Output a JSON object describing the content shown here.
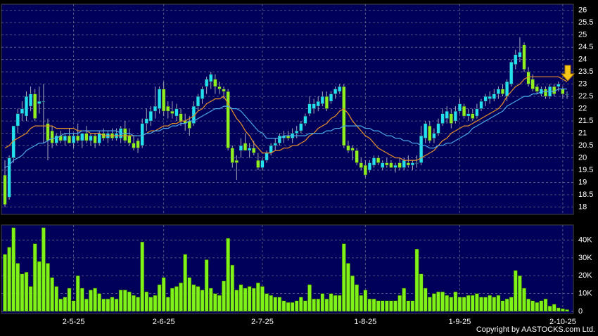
{
  "chart_data": {
    "type": "candlestick",
    "categories": [
      null,
      null,
      null,
      null,
      null,
      null,
      null,
      null,
      null,
      null,
      null,
      null,
      null,
      null,
      null,
      null,
      "2-5-25",
      null,
      null,
      null,
      null,
      null,
      null,
      null,
      null,
      null,
      null,
      null,
      null,
      null,
      null,
      null,
      null,
      null,
      null,
      null,
      null,
      "2-6-25",
      null,
      null,
      null,
      null,
      null,
      null,
      null,
      null,
      null,
      null,
      null,
      null,
      null,
      null,
      null,
      null,
      null,
      null,
      null,
      null,
      null,
      null,
      "2-7-25",
      null,
      null,
      null,
      null,
      null,
      null,
      null,
      null,
      null,
      null,
      null,
      null,
      null,
      null,
      null,
      null,
      null,
      null,
      null,
      null,
      null,
      null,
      null,
      "1-8-25",
      null,
      null,
      null,
      null,
      null,
      null,
      null,
      null,
      null,
      null,
      null,
      null,
      null,
      null,
      null,
      null,
      null,
      null,
      null,
      null,
      null,
      "1-9-25",
      null,
      null,
      null,
      null,
      null,
      null,
      null,
      null,
      null,
      null,
      null,
      null,
      null,
      null,
      null,
      null,
      null,
      null,
      null,
      null,
      null,
      null,
      null,
      "2-10-25",
      null
    ],
    "open": [
      19.3,
      18.4,
      20.0,
      21.3,
      21.8,
      21.7,
      22.1,
      22.6,
      22.2,
      22.3,
      21.4,
      21.1,
      20.6,
      20.9,
      20.7,
      20.9,
      20.6,
      20.9,
      20.7,
      21.0,
      20.7,
      20.9,
      20.6,
      21.0,
      20.8,
      21.0,
      20.8,
      20.8,
      21.2,
      20.9,
      20.6,
      20.7,
      20.5,
      21.4,
      21.5,
      21.9,
      22.0,
      22.8,
      22.1,
      21.9,
      21.7,
      21.8,
      21.5,
      21.5,
      21.4,
      22.1,
      22.4,
      22.9,
      23.1,
      23.2,
      22.9,
      22.8,
      22.7,
      20.4,
      19.9,
      20.3,
      20.6,
      20.3,
      20.4,
      19.9,
      19.6,
      19.9,
      20.2,
      20.5,
      20.6,
      20.8,
      20.9,
      20.8,
      21.0,
      21.1,
      21.4,
      21.8,
      22.0,
      22.1,
      22.2,
      22.5,
      22.3,
      22.6,
      22.7,
      22.9,
      20.5,
      20.4,
      20.3,
      19.8,
      19.7,
      19.5,
      19.7,
      20.0,
      19.6,
      19.8,
      19.8,
      19.6,
      19.8,
      19.6,
      19.8,
      19.7,
      19.8,
      19.8,
      20.8,
      21.3,
      20.8,
      21.0,
      21.4,
      21.6,
      21.8,
      21.5,
      21.9,
      22.1,
      21.7,
      21.8,
      21.7,
      22.0,
      22.3,
      22.4,
      22.4,
      22.6,
      22.8,
      22.5,
      23.0,
      23.8,
      24.1,
      24.6,
      23.5,
      23.2,
      22.9,
      22.6,
      22.8,
      22.5,
      22.9,
      22.9,
      22.8,
      22.6
    ],
    "high": [
      19.9,
      20.1,
      21.3,
      22.0,
      22.3,
      22.7,
      22.9,
      22.8,
      22.9,
      23.0,
      21.6,
      21.3,
      21.0,
      21.1,
      21.0,
      21.2,
      21.0,
      21.4,
      21.0,
      21.3,
      21.0,
      21.0,
      21.1,
      21.2,
      21.1,
      21.2,
      21.2,
      21.3,
      21.5,
      21.2,
      20.9,
      20.8,
      21.6,
      22.0,
      22.1,
      22.9,
      22.9,
      23.1,
      22.3,
      22.3,
      22.2,
      22.0,
      21.8,
      21.7,
      22.3,
      22.6,
      22.9,
      23.3,
      23.5,
      23.4,
      23.1,
      22.9,
      22.8,
      20.5,
      20.1,
      20.8,
      21.0,
      20.6,
      20.7,
      20.2,
      20.0,
      20.3,
      20.6,
      20.8,
      21.0,
      21.1,
      21.1,
      21.2,
      21.3,
      21.5,
      21.8,
      22.5,
      22.4,
      22.5,
      22.7,
      22.7,
      22.7,
      22.9,
      23.0,
      23.0,
      20.7,
      20.5,
      20.4,
      20.0,
      19.9,
      19.9,
      20.1,
      20.1,
      19.9,
      20.0,
      19.9,
      19.8,
      20.0,
      20.0,
      20.1,
      19.9,
      20.1,
      21.3,
      21.5,
      21.5,
      21.2,
      21.6,
      22.0,
      22.1,
      22.0,
      22.1,
      22.4,
      22.2,
      22.0,
      22.0,
      22.2,
      22.4,
      22.6,
      22.7,
      22.8,
      22.9,
      23.0,
      23.2,
      24.0,
      24.4,
      24.9,
      24.7,
      23.7,
      23.4,
      23.0,
      22.9,
      22.9,
      23.0,
      23.0,
      23.1,
      22.9,
      22.7
    ],
    "low": [
      18.0,
      18.3,
      19.8,
      21.0,
      21.5,
      21.5,
      21.9,
      21.5,
      21.8,
      20.6,
      19.9,
      20.4,
      20.5,
      20.6,
      20.5,
      20.6,
      20.4,
      20.6,
      20.4,
      20.6,
      20.5,
      20.4,
      20.5,
      20.7,
      20.6,
      20.7,
      20.7,
      20.6,
      20.6,
      20.5,
      20.3,
      20.2,
      20.4,
      21.1,
      21.3,
      21.6,
      21.8,
      21.7,
      21.6,
      21.6,
      21.5,
      21.3,
      21.1,
      20.9,
      21.3,
      21.9,
      22.2,
      22.6,
      22.8,
      22.6,
      22.6,
      22.4,
      20.3,
      19.6,
      19.1,
      20.0,
      20.3,
      20.0,
      20.1,
      19.5,
      19.5,
      19.8,
      20.1,
      20.3,
      20.5,
      20.6,
      20.7,
      20.6,
      20.8,
      21.0,
      21.3,
      21.7,
      21.8,
      21.9,
      22.1,
      21.9,
      22.2,
      22.4,
      22.6,
      20.4,
      20.2,
      19.9,
      19.7,
      19.5,
      19.2,
      19.4,
      19.6,
      19.7,
      19.5,
      19.6,
      19.6,
      19.4,
      19.5,
      19.5,
      19.6,
      19.5,
      19.6,
      19.7,
      20.6,
      20.6,
      20.6,
      20.9,
      21.3,
      21.4,
      21.2,
      21.4,
      21.8,
      21.6,
      21.5,
      21.5,
      21.6,
      21.9,
      22.1,
      22.2,
      22.3,
      22.4,
      22.5,
      22.3,
      22.9,
      23.6,
      23.9,
      23.5,
      22.9,
      22.7,
      22.6,
      22.5,
      22.4,
      22.4,
      22.5,
      22.7,
      22.4,
      22.4
    ],
    "close": [
      18.1,
      20.0,
      21.3,
      21.8,
      22.0,
      22.5,
      22.6,
      21.6,
      22.3,
      22.3,
      20.7,
      20.6,
      20.9,
      20.7,
      20.9,
      20.6,
      20.9,
      20.7,
      21.0,
      20.7,
      20.9,
      20.6,
      21.0,
      20.8,
      21.0,
      20.8,
      21.0,
      21.2,
      20.7,
      20.6,
      20.4,
      20.4,
      21.4,
      21.6,
      21.9,
      22.1,
      22.8,
      21.9,
      21.9,
      21.8,
      22.0,
      21.5,
      21.4,
      21.2,
      22.1,
      22.5,
      22.8,
      23.2,
      23.4,
      22.9,
      22.8,
      22.7,
      20.4,
      19.8,
      19.8,
      20.5,
      20.3,
      20.4,
      20.2,
      19.6,
      19.9,
      20.2,
      20.5,
      20.6,
      20.9,
      20.9,
      20.8,
      21.0,
      21.1,
      21.4,
      21.7,
      22.2,
      22.2,
      22.3,
      22.5,
      22.0,
      22.6,
      22.8,
      22.9,
      20.5,
      20.3,
      20.3,
      19.8,
      19.6,
      19.3,
      19.8,
      20.0,
      19.8,
      19.8,
      19.7,
      19.6,
      19.7,
      19.6,
      19.9,
      19.7,
      19.8,
      19.8,
      20.9,
      21.4,
      20.7,
      21.0,
      21.4,
      21.8,
      21.9,
      21.4,
      21.9,
      22.2,
      21.7,
      21.8,
      21.6,
      22.0,
      22.3,
      22.5,
      22.5,
      22.6,
      22.8,
      22.6,
      23.1,
      23.9,
      24.2,
      24.3,
      23.6,
      23.0,
      22.8,
      22.7,
      22.8,
      22.5,
      22.9,
      22.6,
      23.0,
      22.6,
      22.6
    ],
    "up_color": "#22e0f0",
    "down_color": "#8ef01e",
    "lines": [
      {
        "color": "#e8902a",
        "values": [
          20.4,
          20.5,
          20.7,
          20.8,
          20.9,
          21.0,
          21.2,
          21.3,
          21.3,
          21.3,
          21.3,
          21.3,
          21.2,
          21.2,
          21.2,
          21.2,
          21.2,
          21.1,
          21.1,
          21.1,
          21.0,
          21.0,
          21.0,
          20.9,
          20.9,
          20.9,
          20.9,
          20.9,
          20.9,
          20.9,
          20.9,
          20.9,
          20.9,
          21.0,
          21.1,
          21.1,
          21.2,
          21.3,
          21.3,
          21.4,
          21.4,
          21.5,
          21.5,
          21.6,
          21.7,
          21.9,
          22.0,
          22.2,
          22.3,
          22.4,
          22.4,
          22.5,
          22.2,
          21.9,
          21.6,
          21.4,
          21.1,
          20.9,
          20.6,
          20.4,
          20.2,
          20.2,
          20.2,
          20.3,
          20.3,
          20.4,
          20.4,
          20.5,
          20.5,
          20.6,
          20.7,
          20.9,
          21.0,
          21.2,
          21.3,
          21.4,
          21.6,
          21.7,
          21.9,
          22.0,
          21.8,
          21.5,
          21.3,
          21.1,
          20.9,
          20.8,
          20.6,
          20.4,
          20.3,
          20.2,
          20.1,
          20.0,
          20.0,
          19.9,
          19.9,
          19.9,
          19.9,
          20.0,
          20.1,
          20.2,
          20.3,
          20.5,
          20.7,
          20.8,
          21.0,
          21.1,
          21.2,
          21.3,
          21.3,
          21.4,
          21.5,
          21.6,
          21.7,
          21.8,
          21.9,
          22.0,
          22.2,
          22.5,
          22.7,
          22.9,
          23.0,
          23.2,
          23.3,
          23.3,
          23.3,
          23.3,
          23.3,
          23.3,
          23.3,
          23.3,
          23.2,
          23.1
        ]
      },
      {
        "color": "#4aa8e8",
        "values": [
          19.6,
          19.7,
          19.9,
          20.0,
          20.1,
          20.3,
          20.4,
          20.5,
          20.6,
          20.6,
          20.7,
          20.8,
          20.8,
          20.9,
          21.0,
          21.0,
          21.0,
          21.0,
          21.1,
          21.1,
          21.1,
          21.1,
          21.1,
          21.1,
          21.1,
          21.1,
          21.1,
          21.0,
          21.0,
          21.0,
          20.9,
          20.9,
          20.9,
          21.0,
          21.0,
          21.1,
          21.1,
          21.2,
          21.2,
          21.3,
          21.3,
          21.4,
          21.4,
          21.5,
          21.5,
          21.6,
          21.7,
          21.8,
          21.9,
          22.0,
          22.0,
          22.1,
          22.1,
          22.0,
          22.0,
          21.9,
          21.7,
          21.5,
          21.3,
          21.1,
          21.0,
          20.8,
          20.8,
          20.8,
          20.8,
          20.9,
          20.9,
          20.9,
          20.9,
          20.9,
          20.9,
          21.0,
          21.0,
          21.0,
          21.0,
          21.1,
          21.1,
          21.2,
          21.2,
          21.3,
          21.3,
          21.3,
          21.3,
          21.3,
          21.2,
          21.2,
          21.1,
          21.1,
          21.0,
          20.9,
          20.9,
          20.8,
          20.8,
          20.7,
          20.7,
          20.6,
          20.6,
          20.5,
          20.5,
          20.4,
          20.4,
          20.5,
          20.5,
          20.6,
          20.6,
          20.7,
          20.8,
          20.9,
          21.0,
          21.2,
          21.3,
          21.4,
          21.5,
          21.6,
          21.7,
          21.8,
          21.9,
          22.1,
          22.2,
          22.3,
          22.4,
          22.5,
          22.5,
          22.6,
          22.6,
          22.7,
          22.7,
          22.7,
          22.7,
          22.8,
          22.8,
          22.8
        ]
      }
    ],
    "ylim": [
      17.7,
      26.25
    ],
    "yticks": [
      18,
      18.5,
      19,
      19.5,
      20,
      20.5,
      21,
      21.5,
      22,
      22.5,
      23,
      23.5,
      24,
      24.5,
      25,
      25.5,
      26
    ],
    "grid": true,
    "volume": {
      "type": "bar",
      "color": "#7ff21a",
      "values": [
        32000,
        36000,
        47000,
        27000,
        21000,
        22000,
        14000,
        38000,
        28000,
        47000,
        27000,
        19000,
        14000,
        7000,
        8000,
        13000,
        6000,
        20000,
        13000,
        7000,
        12000,
        13000,
        10000,
        7000,
        7000,
        8000,
        7000,
        12000,
        12000,
        11000,
        9000,
        8000,
        39000,
        11000,
        8000,
        9000,
        15000,
        19000,
        8000,
        13000,
        14000,
        16000,
        32000,
        19000,
        15000,
        14000,
        12000,
        29000,
        13000,
        10000,
        9000,
        17000,
        41000,
        26000,
        12000,
        15000,
        13000,
        14000,
        13000,
        16000,
        14000,
        10000,
        9000,
        8000,
        8000,
        6000,
        5000,
        5000,
        6000,
        8000,
        6000,
        15000,
        7000,
        7000,
        10000,
        7000,
        10000,
        9000,
        9000,
        38000,
        27000,
        20000,
        15000,
        9000,
        12000,
        7000,
        7000,
        6000,
        6000,
        6000,
        6000,
        6000,
        9000,
        13000,
        6000,
        6000,
        35000,
        21000,
        13000,
        8000,
        10000,
        11000,
        11000,
        9000,
        8000,
        11000,
        8000,
        8000,
        9000,
        9000,
        10000,
        8000,
        8000,
        9000,
        8000,
        9000,
        6000,
        7000,
        8000,
        23000,
        20000,
        13000,
        7000,
        6000,
        5000,
        6000,
        7000,
        3000,
        4000,
        2000,
        1500,
        1000
      ],
      "ylim": [
        -1200,
        48500
      ],
      "yticks": [
        0,
        {
          "value": 10000,
          "label": "10K"
        },
        {
          "value": 20000,
          "label": "20K"
        },
        {
          "value": 30000,
          "label": "30K"
        },
        {
          "value": 40000,
          "label": "40K"
        }
      ]
    },
    "copyright": "Copyright by AASTOCKS.com Ltd."
  }
}
